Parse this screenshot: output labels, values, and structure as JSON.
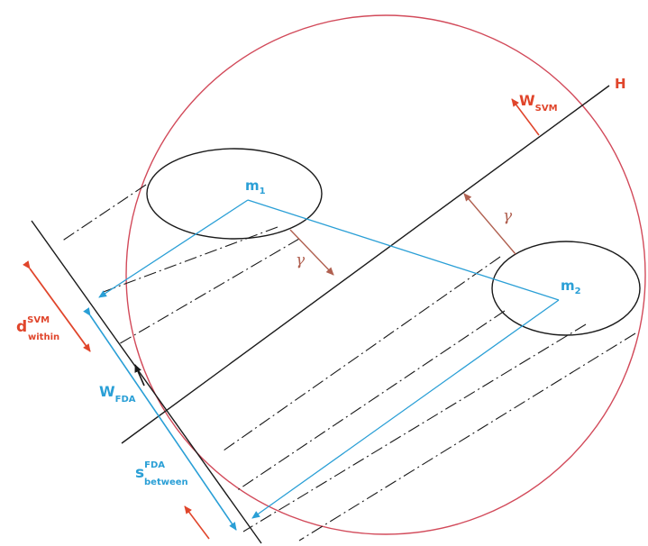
{
  "colors": {
    "black": "#1a1a1a",
    "red": "#e0452b",
    "blue": "#2a9fd6",
    "circle": "#d24a5a",
    "gamma": "#b06050"
  },
  "labels": {
    "H": "H",
    "m1_base": "m",
    "m1_sub": "1",
    "m2_base": "m",
    "m2_sub": "2",
    "wsvm_base": "W",
    "wsvm_sub": "SVM",
    "gamma": "γ",
    "d_base": "d",
    "d_sup": "SVM",
    "d_sub": "within",
    "wfda_base": "W",
    "wfda_sub": "FDA",
    "s_base": "s",
    "s_sup": "FDA",
    "s_sub": "between"
  }
}
